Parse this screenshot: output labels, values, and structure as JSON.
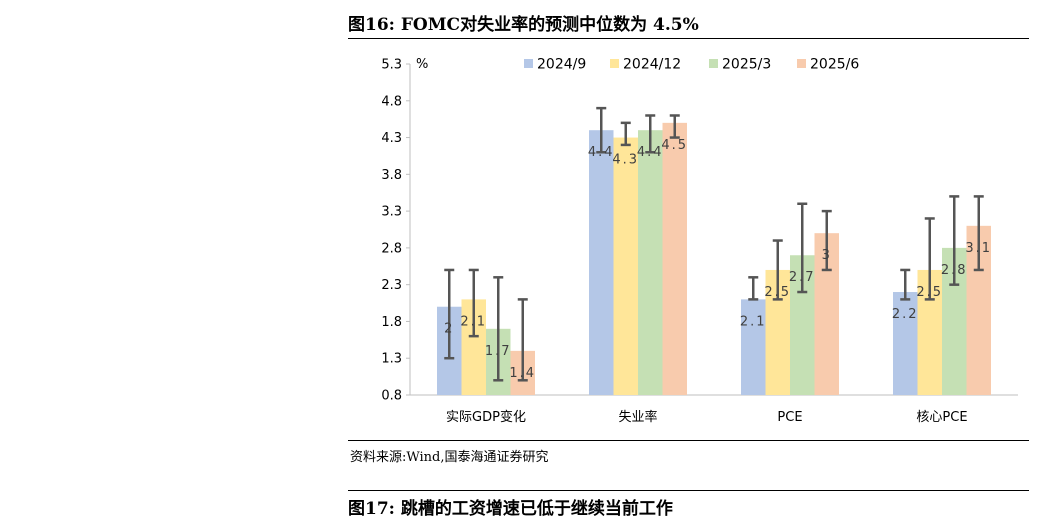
{
  "figure16": {
    "title": "图16:  FOMC对失业率的预测中位数为 4.5%",
    "source": "资料来源:Wind,国泰海通证券研究"
  },
  "figure17": {
    "title": "图17:  跳槽的工资增速已低于继续当前工作"
  },
  "colors": {
    "2024/9": "#b4c7e7",
    "2024/12": "#ffe699",
    "2025/3": "#c5e0b4",
    "2025/6": "#f8cbad",
    "error_bar": "#555555",
    "axis": "#bfbfbf"
  },
  "chart_data": {
    "type": "bar",
    "unit_label": "%",
    "categories": [
      "实际GDP变化",
      "失业率",
      "PCE",
      "核心PCE"
    ],
    "ylim": [
      0.8,
      5.3
    ],
    "yticks": [
      "0.8",
      "1.3",
      "1.8",
      "2.3",
      "2.8",
      "3.3",
      "3.8",
      "4.3",
      "4.8",
      "5.3"
    ],
    "legend_position": "top",
    "series": [
      {
        "name": "2024/9",
        "values": [
          2.0,
          4.4,
          2.1,
          2.2
        ],
        "labels": [
          "2",
          "4.4",
          "2.1",
          "2.2"
        ],
        "error_low": [
          1.3,
          4.1,
          2.1,
          2.1
        ],
        "error_high": [
          2.5,
          4.7,
          2.4,
          2.5
        ]
      },
      {
        "name": "2024/12",
        "values": [
          2.1,
          4.3,
          2.5,
          2.5
        ],
        "labels": [
          "2.1",
          "4.3",
          "2.5",
          "2.5"
        ],
        "error_low": [
          1.6,
          4.2,
          2.1,
          2.1
        ],
        "error_high": [
          2.5,
          4.5,
          2.9,
          3.2
        ]
      },
      {
        "name": "2025/3",
        "values": [
          1.7,
          4.4,
          2.7,
          2.8
        ],
        "labels": [
          "1.7",
          "4.4",
          "2.7",
          "2.8"
        ],
        "error_low": [
          1.0,
          4.1,
          2.2,
          2.3
        ],
        "error_high": [
          2.4,
          4.6,
          3.4,
          3.5
        ]
      },
      {
        "name": "2025/6",
        "values": [
          1.4,
          4.5,
          3.0,
          3.1
        ],
        "labels": [
          "1.4",
          "4.5",
          "3",
          "3.1"
        ],
        "error_low": [
          1.0,
          4.3,
          2.5,
          2.5
        ],
        "error_high": [
          2.1,
          4.6,
          3.3,
          3.5
        ]
      }
    ]
  }
}
